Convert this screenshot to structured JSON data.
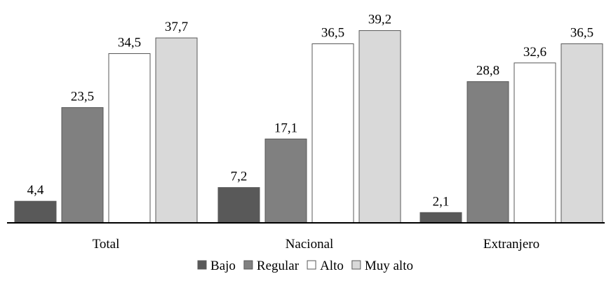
{
  "chart_data": {
    "type": "bar",
    "title": "",
    "xlabel": "",
    "ylabel": "",
    "ylim": [
      0,
      40
    ],
    "grid": false,
    "legend_position": "bottom",
    "categories": [
      "Total",
      "Nacional",
      "Extranjero"
    ],
    "series": [
      {
        "name": "Bajo",
        "color": "#595959",
        "values": [
          4.4,
          7.2,
          2.1
        ],
        "labels": [
          "4,4",
          "7,2",
          "2,1"
        ]
      },
      {
        "name": "Regular",
        "color": "#808080",
        "values": [
          23.5,
          17.1,
          28.8
        ],
        "labels": [
          "23,5",
          "17,1",
          "28,8"
        ]
      },
      {
        "name": "Alto",
        "color": "#ffffff",
        "values": [
          34.5,
          36.5,
          32.6
        ],
        "labels": [
          "34,5",
          "36,5",
          "32,6"
        ]
      },
      {
        "name": "Muy alto",
        "color": "#d9d9d9",
        "values": [
          37.7,
          39.2,
          36.5
        ],
        "labels": [
          "37,7",
          "39,2",
          "36,5"
        ]
      }
    ]
  }
}
